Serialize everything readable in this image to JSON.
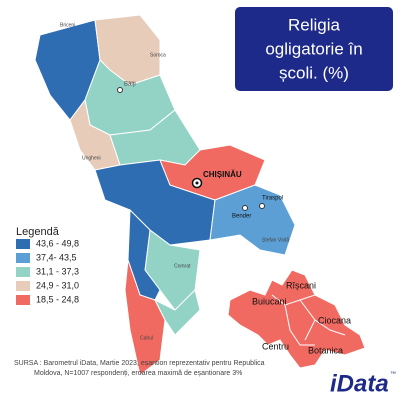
{
  "title_lines": [
    "Religia",
    "ogligatorie în",
    "școli. (%)"
  ],
  "legend": {
    "title": "Legendă",
    "items": [
      {
        "label": "43,6 - 49,8",
        "color": "#2f6db3"
      },
      {
        "label": "37,4- 43,5",
        "color": "#5b9fd4"
      },
      {
        "label": "31,1 - 37,3",
        "color": "#93d3c6"
      },
      {
        "label": "24,9 - 31,0",
        "color": "#e7ccba"
      },
      {
        "label": "18,5 - 24,8",
        "color": "#f06a62"
      }
    ]
  },
  "cities": [
    "Briceni",
    "Soroca",
    "Bălți",
    "Ungheni",
    "CHIȘINĂU",
    "Bender",
    "Tiraspol",
    "Ștefan Vodă",
    "Comrat",
    "Cahul"
  ],
  "chisinau_sectors": [
    "Rîșcani",
    "Buiucani",
    "Ciocana",
    "Centru",
    "Botanica"
  ],
  "source": [
    "SURSA : Barometrul iData, Martie 2023, eșantion reprezentativ pentru Republica",
    "Moldova, N=1007 respondenți, eroarea maximă de eșantionare 3%"
  ],
  "logo": {
    "name": "iData",
    "mark": "™"
  }
}
